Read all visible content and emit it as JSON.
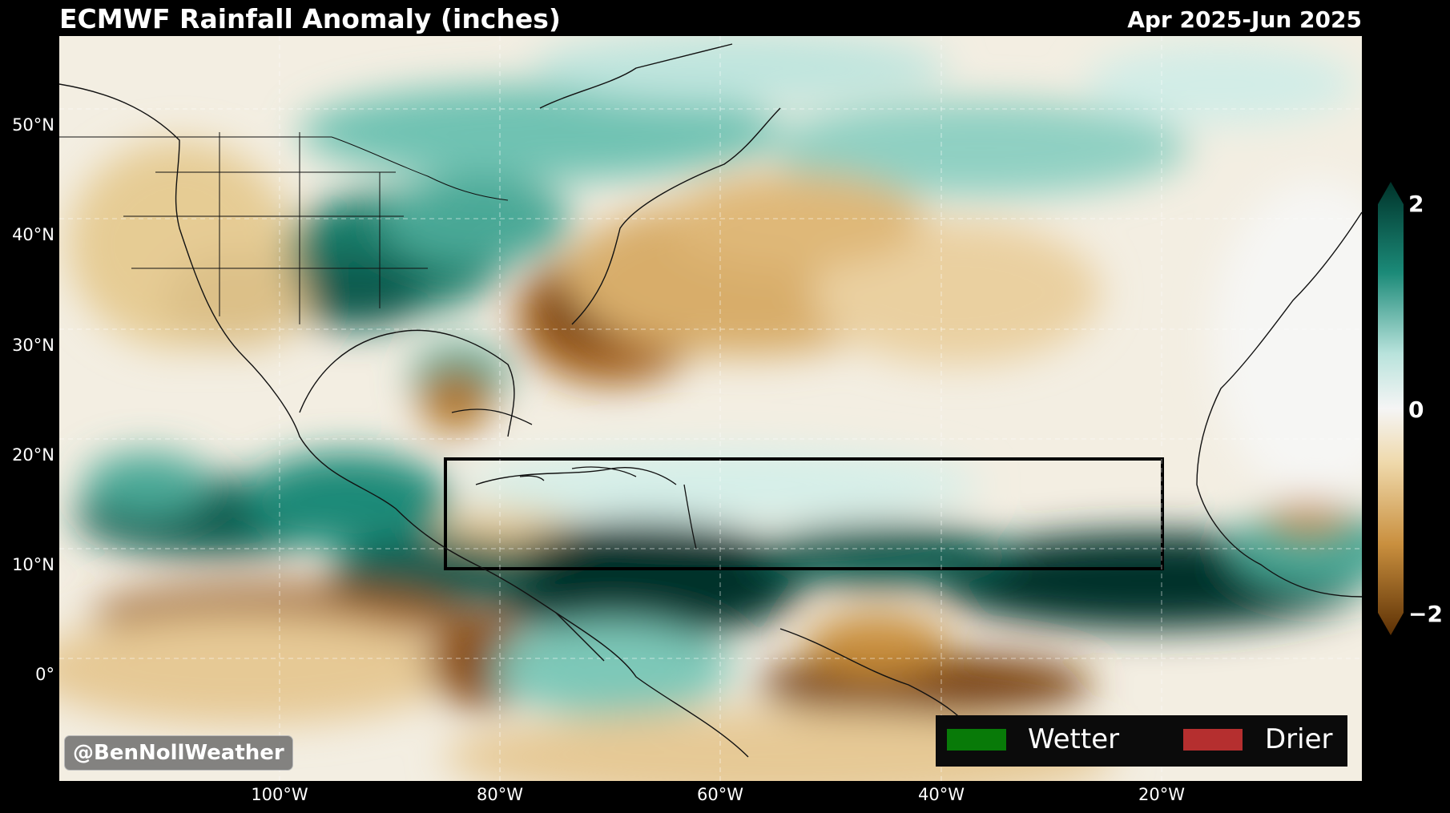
{
  "header": {
    "title": "ECMWF Rainfall Anomaly (inches)",
    "period": "Apr 2025-Jun 2025"
  },
  "axes": {
    "lat_labels": [
      "50°N",
      "40°N",
      "30°N",
      "20°N",
      "10°N",
      "0°"
    ],
    "lon_labels": [
      "100°W",
      "80°W",
      "60°W",
      "40°W",
      "20°W"
    ]
  },
  "colorbar": {
    "max_label": "2",
    "mid_label": "0",
    "min_label": "−2",
    "colors": {
      "wet_strong": "#00332a",
      "wet_mid": "#1b8a78",
      "wet_light": "#b9e3dc",
      "neutral": "#f5f5f5",
      "dry_light": "#efd9ab",
      "dry_mid": "#c98f3e",
      "dry_strong": "#5c3004"
    }
  },
  "region_box": {
    "lat_range": [
      "10°N",
      "20°N"
    ],
    "lon_range": [
      "85°W",
      "20°W"
    ]
  },
  "watermark": "@BenNollWeather",
  "legend": {
    "wet_label": "Wetter",
    "wet_color": "#087a08",
    "dry_label": "Drier",
    "dry_color": "#b52f2f"
  }
}
